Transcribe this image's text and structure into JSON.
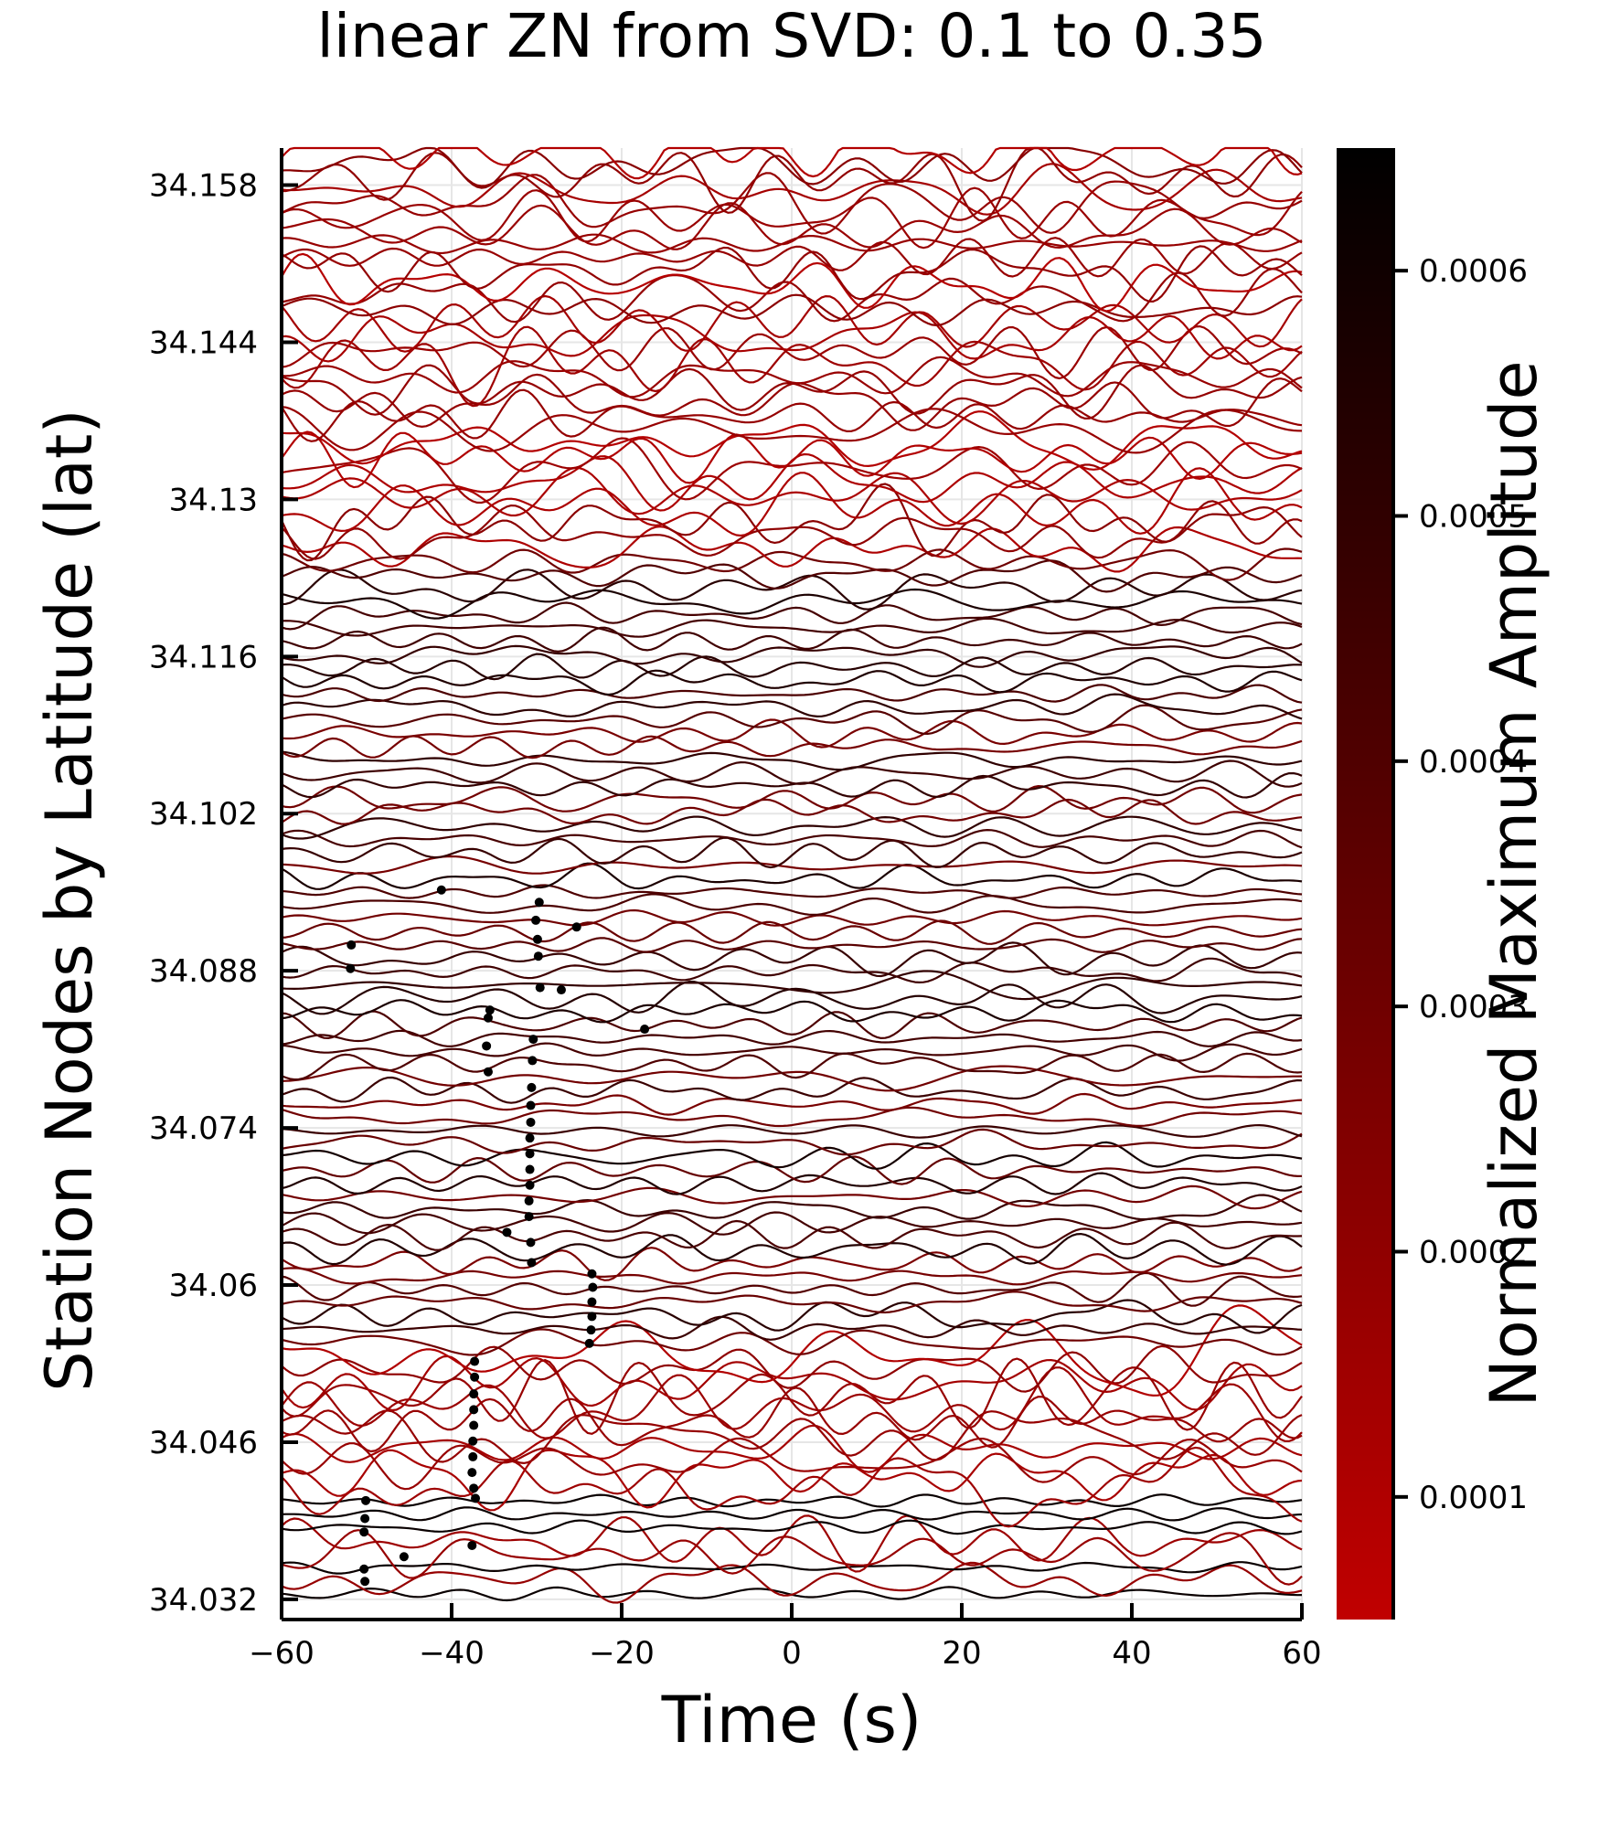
{
  "chart_data": {
    "type": "line",
    "title": "linear ZN from SVD: 0.1 to 0.35",
    "xlabel": "Time (s)",
    "ylabel": "Station Nodes by Latitude (lat)",
    "xlim": [
      -60,
      60
    ],
    "ylim": [
      34.0302,
      34.1613
    ],
    "xticks": [
      -60,
      -40,
      -20,
      0,
      20,
      40,
      60
    ],
    "xtick_labels": [
      "−60",
      "−40",
      "−20",
      "0",
      "20",
      "40",
      "60"
    ],
    "yticks": [
      34.032,
      34.046,
      34.06,
      34.074,
      34.088,
      34.102,
      34.116,
      34.13,
      34.144,
      34.158
    ],
    "ytick_labels": [
      "34.032",
      "34.046",
      "34.06",
      "34.074",
      "34.088",
      "34.102",
      "34.116",
      "34.13",
      "34.144",
      "34.158"
    ],
    "grid": true,
    "n_traces": 110,
    "trace_lat_range": [
      34.0325,
      34.161
    ],
    "colorbar": {
      "label": "Normalized Maximum Amplitude",
      "range": [
        5e-05,
        0.00065
      ],
      "ticks": [
        0.0001,
        0.0002,
        0.0003,
        0.0004,
        0.0005,
        0.0006
      ],
      "tick_labels": [
        "0.0001",
        "0.0002",
        "0.0003",
        "0.0004",
        "0.0005",
        "0.0006"
      ],
      "colormap": [
        "#c00000",
        "#000000"
      ]
    },
    "picks": [
      {
        "t": -41.2,
        "lat": 34.0952
      },
      {
        "t": -29.7,
        "lat": 34.0941
      },
      {
        "t": -25.3,
        "lat": 34.0919
      },
      {
        "t": -51.8,
        "lat": 34.0903
      },
      {
        "t": -30.1,
        "lat": 34.0925
      },
      {
        "t": -29.9,
        "lat": 34.0908
      },
      {
        "t": -29.8,
        "lat": 34.0893
      },
      {
        "t": -51.9,
        "lat": 34.0882
      },
      {
        "t": -29.6,
        "lat": 34.0865
      },
      {
        "t": -27.1,
        "lat": 34.0863
      },
      {
        "t": -35.5,
        "lat": 34.0845
      },
      {
        "t": -35.7,
        "lat": 34.0838
      },
      {
        "t": -17.3,
        "lat": 34.0828
      },
      {
        "t": -30.4,
        "lat": 34.0819
      },
      {
        "t": -35.9,
        "lat": 34.0813
      },
      {
        "t": -30.5,
        "lat": 34.08
      },
      {
        "t": -35.7,
        "lat": 34.079
      },
      {
        "t": -30.6,
        "lat": 34.0776
      },
      {
        "t": -30.7,
        "lat": 34.076
      },
      {
        "t": -30.7,
        "lat": 34.0745
      },
      {
        "t": -30.8,
        "lat": 34.0731
      },
      {
        "t": -30.8,
        "lat": 34.0717
      },
      {
        "t": -30.8,
        "lat": 34.0703
      },
      {
        "t": -30.8,
        "lat": 34.0689
      },
      {
        "t": -30.9,
        "lat": 34.0675
      },
      {
        "t": -30.9,
        "lat": 34.0661
      },
      {
        "t": -33.5,
        "lat": 34.0647
      },
      {
        "t": -30.7,
        "lat": 34.0638
      },
      {
        "t": -30.6,
        "lat": 34.062
      },
      {
        "t": -23.5,
        "lat": 34.061
      },
      {
        "t": -23.4,
        "lat": 34.0598
      },
      {
        "t": -23.5,
        "lat": 34.0585
      },
      {
        "t": -23.5,
        "lat": 34.0572
      },
      {
        "t": -23.6,
        "lat": 34.056
      },
      {
        "t": -23.8,
        "lat": 34.0548
      },
      {
        "t": -37.3,
        "lat": 34.0532
      },
      {
        "t": -37.3,
        "lat": 34.0518
      },
      {
        "t": -37.4,
        "lat": 34.0503
      },
      {
        "t": -37.4,
        "lat": 34.0489
      },
      {
        "t": -37.4,
        "lat": 34.0475
      },
      {
        "t": -37.5,
        "lat": 34.0461
      },
      {
        "t": -37.5,
        "lat": 34.0447
      },
      {
        "t": -37.6,
        "lat": 34.0433
      },
      {
        "t": -37.4,
        "lat": 34.0419
      },
      {
        "t": -37.2,
        "lat": 34.041
      },
      {
        "t": -50.1,
        "lat": 34.0408
      },
      {
        "t": -50.2,
        "lat": 34.0392
      },
      {
        "t": -50.3,
        "lat": 34.038
      },
      {
        "t": -37.6,
        "lat": 34.0368
      },
      {
        "t": -45.6,
        "lat": 34.0358
      },
      {
        "t": -50.3,
        "lat": 34.0347
      },
      {
        "t": -50.2,
        "lat": 34.0336
      }
    ]
  }
}
